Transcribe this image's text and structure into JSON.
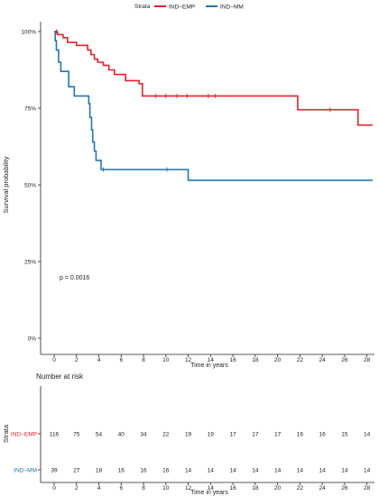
{
  "chart_data": [
    {
      "type": "line",
      "subtype": "kaplan-meier",
      "ylabel": "Survival probability",
      "xlabel": "Time in years",
      "xlim": [
        0,
        28.5
      ],
      "ylim": [
        0,
        1
      ],
      "x_ticks": [
        0,
        2,
        4,
        6,
        8,
        10,
        12,
        14,
        16,
        18,
        20,
        22,
        24,
        26,
        28
      ],
      "y_ticks": [
        {
          "value": 0,
          "label": "0%"
        },
        {
          "value": 0.25,
          "label": "25%"
        },
        {
          "value": 0.5,
          "label": "50%"
        },
        {
          "value": 0.75,
          "label": "75%"
        },
        {
          "value": 1,
          "label": "100%"
        }
      ],
      "grid": false,
      "legend": {
        "title": "Strata",
        "placement": "top"
      },
      "annotation": "p = 0.0016",
      "annotation_position": {
        "x": 0.5,
        "y": 0.2
      },
      "series": [
        {
          "name": "IND-EMP",
          "color": "#e8202a",
          "steps": [
            [
              0,
              1.0
            ],
            [
              0.3,
              0.99
            ],
            [
              0.8,
              0.98
            ],
            [
              1.2,
              0.965
            ],
            [
              2.0,
              0.955
            ],
            [
              3.0,
              0.94
            ],
            [
              3.3,
              0.925
            ],
            [
              3.6,
              0.91
            ],
            [
              3.9,
              0.9
            ],
            [
              4.4,
              0.89
            ],
            [
              4.9,
              0.875
            ],
            [
              5.4,
              0.86
            ],
            [
              6.4,
              0.84
            ],
            [
              7.6,
              0.83
            ],
            [
              7.9,
              0.79
            ],
            [
              21.8,
              0.79
            ],
            [
              21.8,
              0.745
            ],
            [
              27.2,
              0.745
            ],
            [
              27.2,
              0.695
            ],
            [
              28.5,
              0.695
            ]
          ],
          "censored": [
            [
              0.2,
              1.0
            ],
            [
              9.1,
              0.79
            ],
            [
              10.0,
              0.79
            ],
            [
              11.0,
              0.79
            ],
            [
              11.9,
              0.79
            ],
            [
              13.8,
              0.79
            ],
            [
              14.4,
              0.79
            ],
            [
              24.7,
              0.745
            ]
          ]
        },
        {
          "name": "IND-MM",
          "color": "#1f77b4",
          "steps": [
            [
              0,
              1.0
            ],
            [
              0.1,
              0.97
            ],
            [
              0.2,
              0.94
            ],
            [
              0.4,
              0.9
            ],
            [
              0.6,
              0.87
            ],
            [
              1.3,
              0.82
            ],
            [
              1.8,
              0.79
            ],
            [
              3.1,
              0.765
            ],
            [
              3.2,
              0.72
            ],
            [
              3.35,
              0.68
            ],
            [
              3.45,
              0.64
            ],
            [
              3.6,
              0.61
            ],
            [
              3.75,
              0.58
            ],
            [
              4.2,
              0.55
            ],
            [
              12.0,
              0.55
            ],
            [
              12.0,
              0.515
            ],
            [
              28.5,
              0.515
            ]
          ],
          "censored": [
            [
              4.4,
              0.55
            ],
            [
              10.1,
              0.55
            ]
          ]
        }
      ]
    },
    {
      "type": "table",
      "title": "Number at risk",
      "ylabel": "Strata",
      "xlabel": "Time in years",
      "x": [
        0,
        2,
        4,
        6,
        8,
        10,
        12,
        14,
        16,
        18,
        20,
        22,
        24,
        26,
        28
      ],
      "rows": [
        {
          "name": "IND-EMP",
          "label": "IND−EMP",
          "color": "#e8202a",
          "values": [
            116,
            75,
            54,
            40,
            34,
            22,
            19,
            19,
            17,
            17,
            17,
            16,
            16,
            15,
            14
          ]
        },
        {
          "name": "IND-MM",
          "label": "IND−MM",
          "color": "#1f77b4",
          "values": [
            39,
            27,
            18,
            16,
            16,
            16,
            14,
            14,
            14,
            14,
            14,
            14,
            14,
            14,
            14
          ]
        }
      ]
    }
  ],
  "legend": {
    "title": "Strata",
    "items": [
      {
        "label": "IND−EMP",
        "color": "#e8202a"
      },
      {
        "label": "IND−MM",
        "color": "#1f77b4"
      }
    ]
  }
}
